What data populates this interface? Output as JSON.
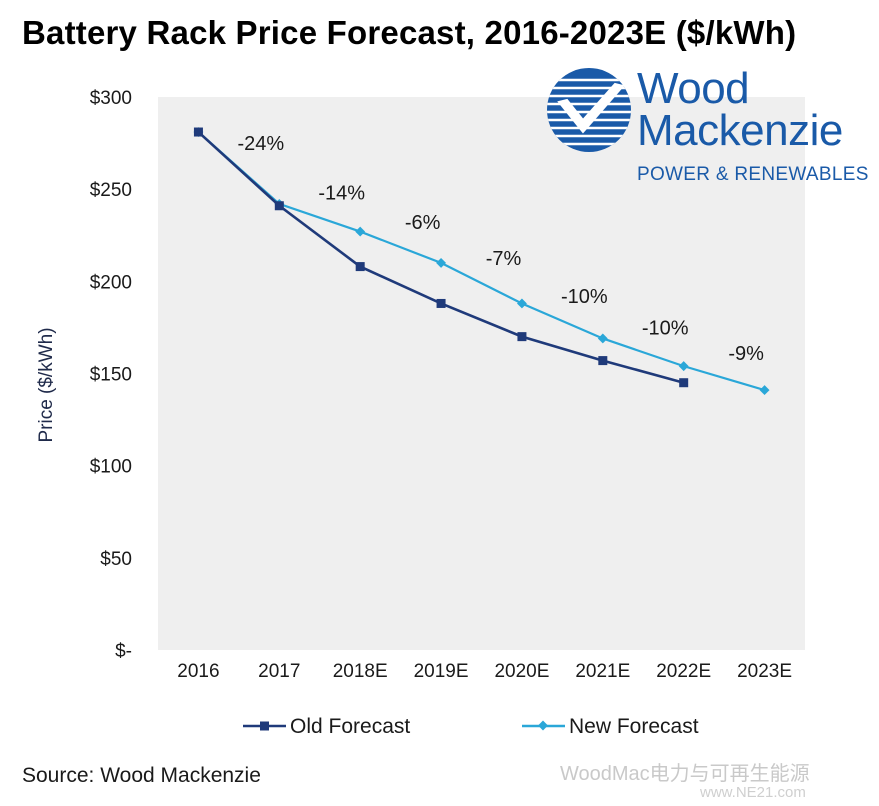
{
  "title": "Battery Rack Price Forecast, 2016-2023E ($/kWh)",
  "source": "Source: Wood Mackenzie",
  "logo": {
    "line1": "Wood",
    "line2": "Mackenzie",
    "subtitle": "POWER & RENEWABLES"
  },
  "watermark": "WoodMac电力与可再生能源",
  "watermark_url": "www.NE21.com",
  "colors": {
    "old": "#1f3a7a",
    "new": "#2aa7d8",
    "plot_bg": "#efefef",
    "brand": "#1a5aa8"
  },
  "chart_data": {
    "type": "line",
    "title": "Battery Rack Price Forecast, 2016-2023E ($/kWh)",
    "ylabel": "Price ($/kWh)",
    "xlabel": "",
    "categories": [
      "2016",
      "2017",
      "2018E",
      "2019E",
      "2020E",
      "2021E",
      "2022E",
      "2023E"
    ],
    "ylim": [
      0,
      300
    ],
    "yticks": [
      0,
      50,
      100,
      150,
      200,
      250,
      300
    ],
    "ytick_labels": [
      "$-",
      "$50",
      "$100",
      "$150",
      "$200",
      "$250",
      "$300"
    ],
    "grid": false,
    "legend_position": "bottom",
    "series": [
      {
        "name": "Old Forecast",
        "marker": "square",
        "values": [
          281,
          241,
          208,
          188,
          170,
          157,
          145,
          null
        ]
      },
      {
        "name": "New Forecast",
        "marker": "diamond",
        "values": [
          281,
          242,
          227,
          210,
          188,
          169,
          154,
          141
        ]
      }
    ],
    "annotations": [
      {
        "text": "-24%",
        "segment": 0
      },
      {
        "text": "-14%",
        "segment": 1
      },
      {
        "text": "-6%",
        "segment": 2
      },
      {
        "text": "-7%",
        "segment": 3
      },
      {
        "text": "-10%",
        "segment": 4
      },
      {
        "text": "-10%",
        "segment": 5
      },
      {
        "text": "-9%",
        "segment": 6
      }
    ]
  }
}
